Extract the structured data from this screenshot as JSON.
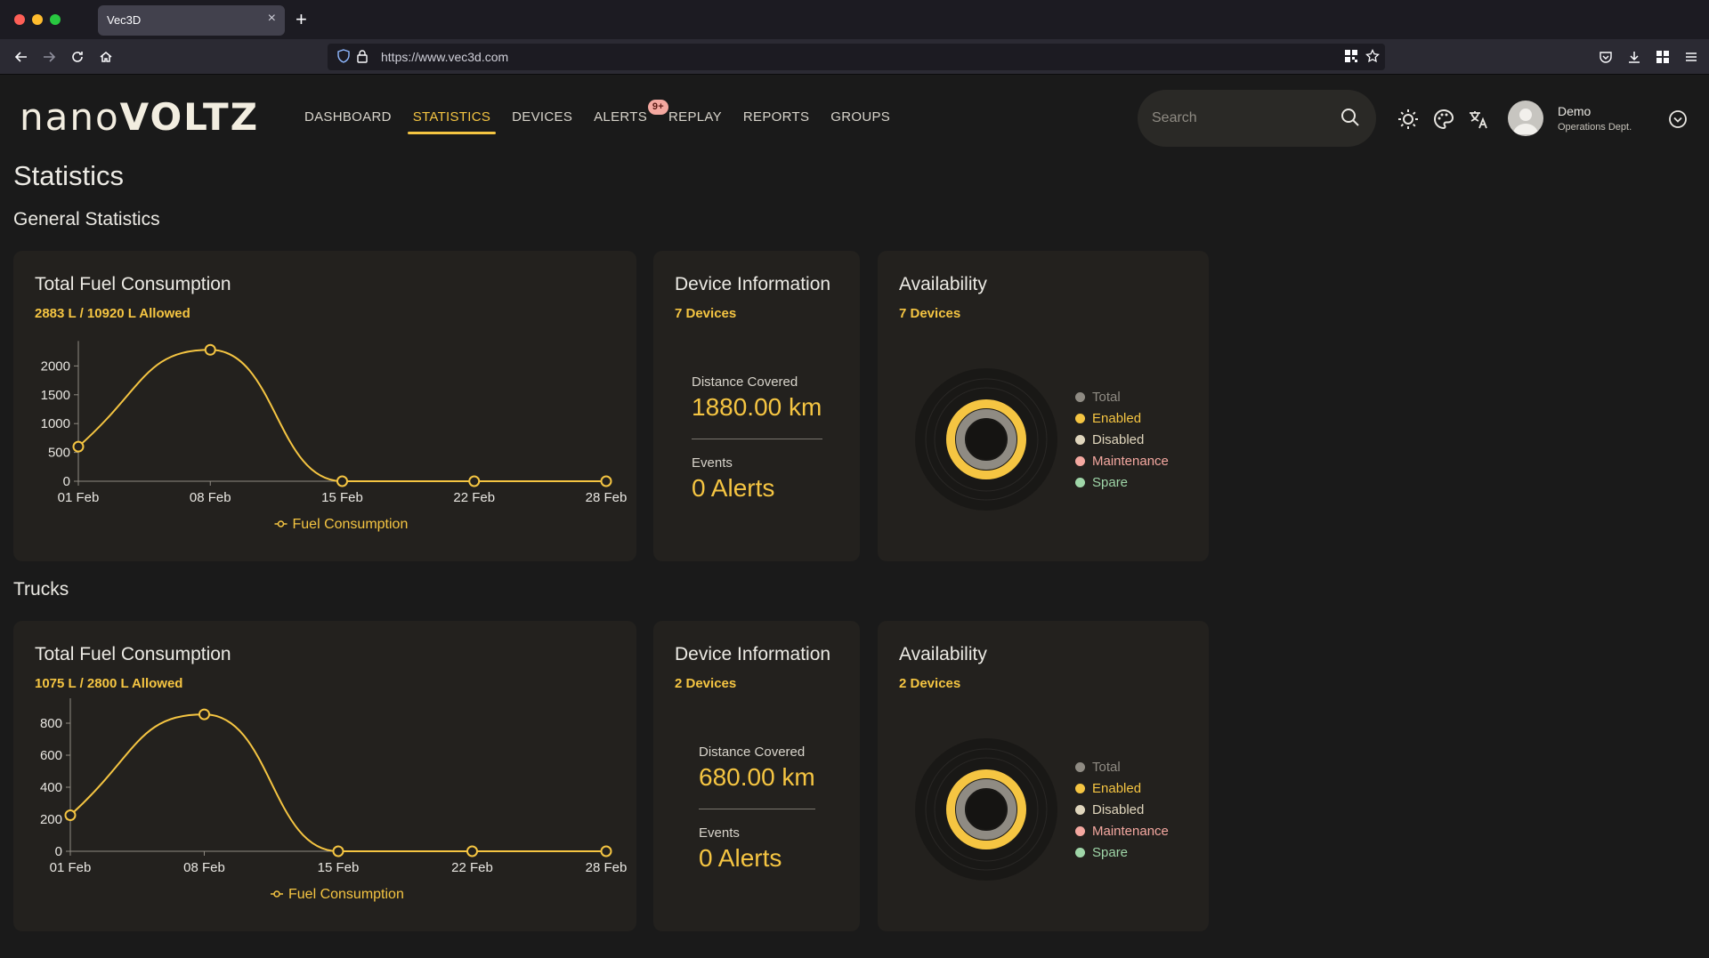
{
  "browser": {
    "tab_title": "Vec3D",
    "tab_close": "×",
    "new_tab": "+",
    "url": "https://www.vec3d.com"
  },
  "header": {
    "logo": {
      "part1": "nano",
      "part2": "VOLTZ"
    },
    "nav": [
      {
        "label": "DASHBOARD",
        "active": false
      },
      {
        "label": "STATISTICS",
        "active": true
      },
      {
        "label": "DEVICES",
        "active": false
      },
      {
        "label": "ALERTS",
        "active": false,
        "badge": "9+"
      },
      {
        "label": "REPLAY",
        "active": false
      },
      {
        "label": "REPORTS",
        "active": false
      },
      {
        "label": "GROUPS",
        "active": false
      }
    ],
    "search_placeholder": "Search",
    "user": {
      "name": "Demo",
      "department": "Operations Dept."
    }
  },
  "page": {
    "title": "Statistics",
    "sections": [
      {
        "title": "General Statistics",
        "fuel": {
          "title": "Total Fuel Consumption",
          "subtitle": "2883 L / 10920 L Allowed",
          "legend": "Fuel Consumption"
        },
        "device": {
          "title": "Device Information",
          "subtitle": "7 Devices",
          "distance_label": "Distance Covered",
          "distance_value": "1880.00 km",
          "events_label": "Events",
          "events_value": "0 Alerts"
        },
        "availability": {
          "title": "Availability",
          "subtitle": "7 Devices",
          "legend": [
            "Total",
            "Enabled",
            "Disabled",
            "Maintenance",
            "Spare"
          ]
        }
      },
      {
        "title": "Trucks",
        "fuel": {
          "title": "Total Fuel Consumption",
          "subtitle": "1075 L / 2800 L Allowed",
          "legend": "Fuel Consumption"
        },
        "device": {
          "title": "Device Information",
          "subtitle": "2 Devices",
          "distance_label": "Distance Covered",
          "distance_value": "680.00 km",
          "events_label": "Events",
          "events_value": "0 Alerts"
        },
        "availability": {
          "title": "Availability",
          "subtitle": "2 Devices",
          "legend": [
            "Total",
            "Enabled",
            "Disabled",
            "Maintenance",
            "Spare"
          ]
        }
      }
    ]
  },
  "colors": {
    "accent": "#f5c542",
    "legend": [
      "#8f8b83",
      "#f5c542",
      "#e0d6bd",
      "#f4a8a0",
      "#9fd6a8"
    ]
  },
  "chart_data": [
    {
      "type": "line",
      "x": [
        "01 Feb",
        "08 Feb",
        "15 Feb",
        "22 Feb",
        "28 Feb"
      ],
      "series": [
        {
          "name": "Fuel Consumption",
          "values": [
            600,
            2280,
            0,
            0,
            0
          ]
        }
      ],
      "yticks": [
        0,
        500,
        1000,
        1500,
        2000
      ],
      "ylim": [
        0,
        2500
      ],
      "legend_position": "bottom"
    },
    {
      "type": "line",
      "x": [
        "01 Feb",
        "08 Feb",
        "15 Feb",
        "22 Feb",
        "28 Feb"
      ],
      "series": [
        {
          "name": "Fuel Consumption",
          "values": [
            225,
            855,
            0,
            0,
            0
          ]
        }
      ],
      "yticks": [
        0,
        200,
        400,
        600,
        800
      ],
      "ylim": [
        0,
        900
      ],
      "legend_position": "bottom"
    }
  ]
}
